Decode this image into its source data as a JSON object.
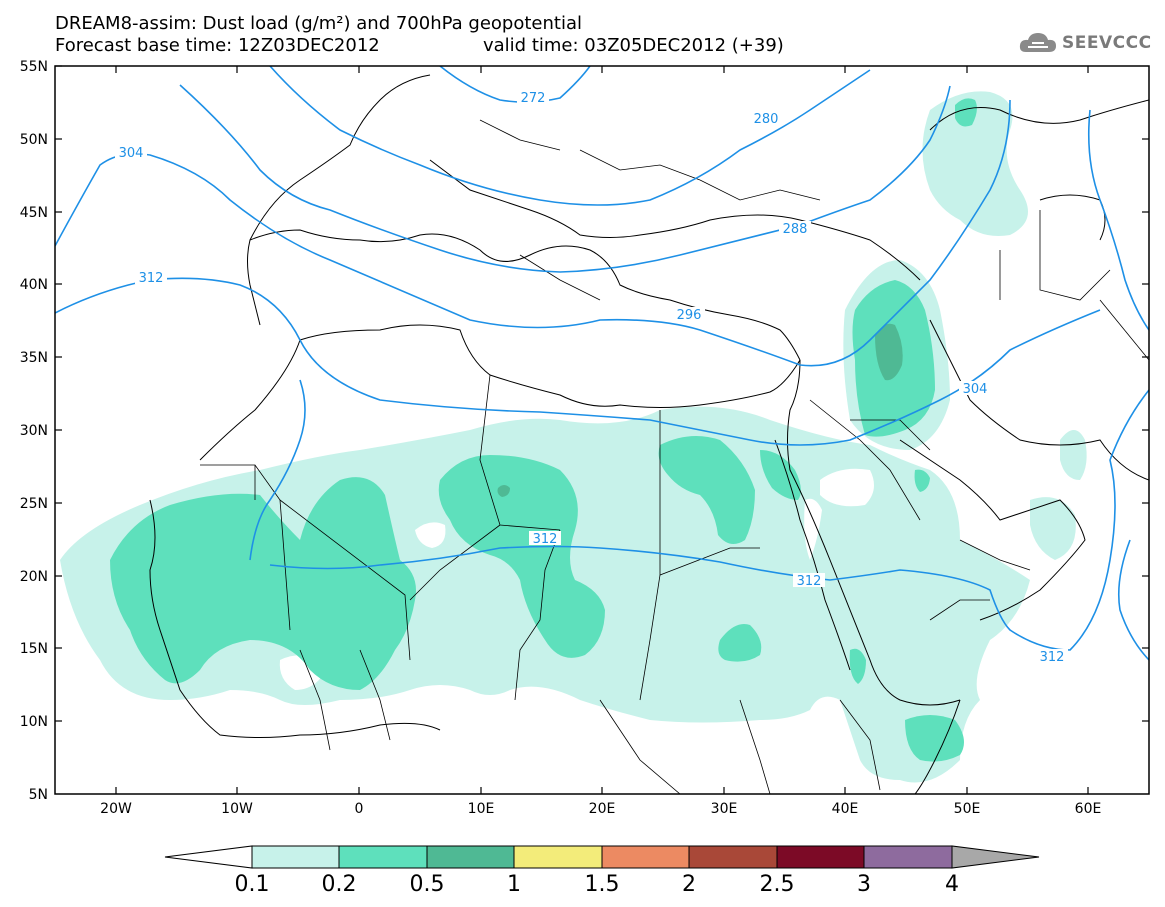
{
  "header": {
    "title_line1": "DREAM8-assim: Dust load (g/m²) and 700hPa geopotential",
    "title_line2": "Forecast base time: 12Z03DEC2012",
    "valid_time": "valid time: 03Z05DEC2012 (+39)",
    "logo_text": "SEEVCCC",
    "logo_icon": "cloud-icon"
  },
  "map": {
    "lat_labels": [
      "55N",
      "50N",
      "45N",
      "40N",
      "35N",
      "30N",
      "25N",
      "20N",
      "15N",
      "10N",
      "5N"
    ],
    "lon_labels": [
      "20W",
      "10W",
      "0",
      "10E",
      "20E",
      "30E",
      "40E",
      "50E",
      "60E"
    ],
    "contour_labels": [
      "272",
      "280",
      "288",
      "296",
      "304",
      "304",
      "312",
      "312",
      "312",
      "312"
    ],
    "contour_color": "#1e90e6"
  },
  "colorbar": {
    "labels": [
      "0.1",
      "0.2",
      "0.5",
      "1",
      "1.5",
      "2",
      "2.5",
      "3",
      "4"
    ],
    "colors": [
      "#ffffff",
      "#c7f2ea",
      "#5ee0bc",
      "#4fb994",
      "#f3ec7a",
      "#ec8a62",
      "#a94838",
      "#7c0a26",
      "#8e6b9e",
      "#a8a8a8"
    ]
  }
}
